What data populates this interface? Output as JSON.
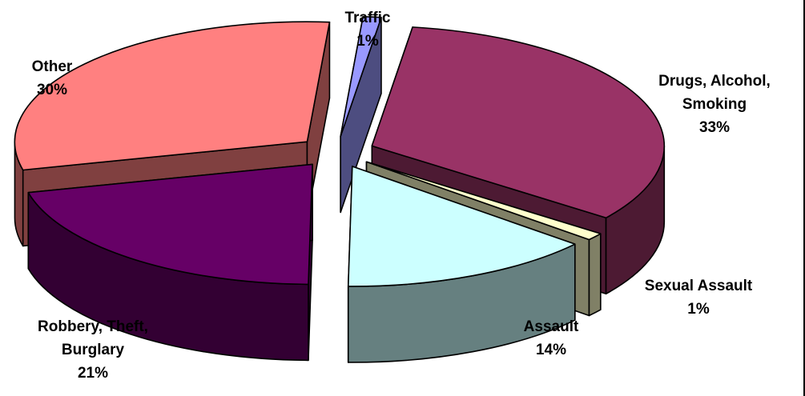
{
  "chart_data": {
    "type": "pie",
    "style": "3d-exploded",
    "title": "",
    "slices": [
      {
        "name": "Drugs, Alcohol, Smoking",
        "value": 33,
        "percent_label": "33%",
        "top_color": "#993366",
        "side_color": "#4d1a33",
        "name_lines": [
          "Drugs, Alcohol,",
          "Smoking"
        ]
      },
      {
        "name": "Sexual Assault",
        "value": 1,
        "percent_label": "1%",
        "top_color": "#ffffcc",
        "side_color": "#808066",
        "name_lines": [
          "Sexual Assault"
        ]
      },
      {
        "name": "Assault",
        "value": 14,
        "percent_label": "14%",
        "top_color": "#ccffff",
        "side_color": "#668080",
        "name_lines": [
          "Assault"
        ]
      },
      {
        "name": "Robbery, Theft, Burglary",
        "value": 21,
        "percent_label": "21%",
        "top_color": "#660066",
        "side_color": "#330033",
        "name_lines": [
          "Robbery, Theft,",
          "Burglary"
        ]
      },
      {
        "name": "Other",
        "value": 30,
        "percent_label": "30%",
        "top_color": "#ff8080",
        "side_color": "#804040",
        "name_lines": [
          "Other"
        ]
      },
      {
        "name": "Traffic",
        "value": 1,
        "percent_label": "1%",
        "top_color": "#9999ff",
        "side_color": "#4d4d80",
        "name_lines": [
          "Traffic"
        ]
      }
    ]
  }
}
